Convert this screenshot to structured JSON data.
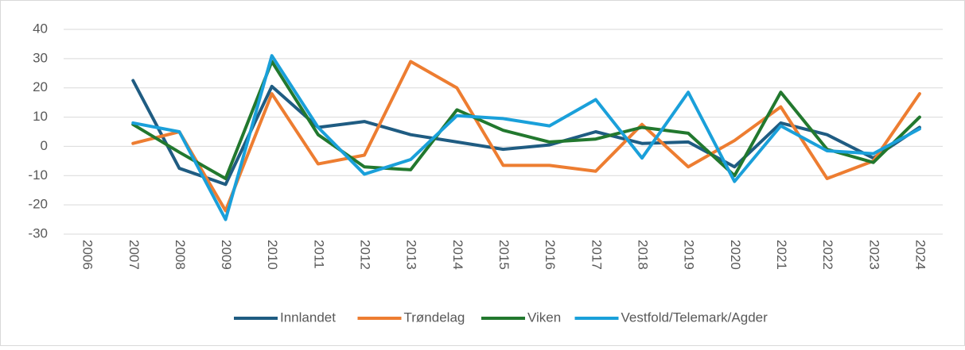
{
  "chart_data": {
    "type": "line",
    "categories": [
      "2006",
      "2007",
      "2008",
      "2009",
      "2010",
      "2011",
      "2012",
      "2013",
      "2014",
      "2015",
      "2016",
      "2017",
      "2018",
      "2019",
      "2020",
      "2021",
      "2022",
      "2023",
      "2024"
    ],
    "series": [
      {
        "name": "Innlandet",
        "color": "#1f5c82",
        "values": [
          null,
          22.5,
          -7.5,
          -13,
          20.5,
          6.5,
          8.5,
          4,
          1.5,
          -1,
          0.5,
          5,
          1,
          1.5,
          -7,
          8,
          4,
          -4,
          6.5
        ]
      },
      {
        "name": "Trøndelag",
        "color": "#ed7d31",
        "values": [
          null,
          1,
          5,
          -22,
          18,
          -6,
          -3,
          29,
          20,
          -6.5,
          -6.5,
          -8.5,
          7.5,
          -7,
          2,
          13.5,
          -11,
          -5,
          18
        ]
      },
      {
        "name": "Viken",
        "color": "#22782e",
        "values": [
          null,
          7.5,
          -2,
          -11,
          29,
          4,
          -7,
          -8,
          12.5,
          5.5,
          1.5,
          2.5,
          6.5,
          4.5,
          -10,
          18.5,
          -1,
          -5.5,
          10
        ]
      },
      {
        "name": "Vestfold/Telemark/Agder",
        "color": "#1aa0da",
        "values": [
          null,
          8,
          5,
          -25,
          31,
          6.5,
          -9.5,
          -4.5,
          10.5,
          9.5,
          7,
          16,
          -4,
          18.5,
          -12,
          7,
          -1.5,
          -2.5,
          6
        ]
      }
    ],
    "ylim": [
      -30,
      40
    ],
    "yticks": [
      -30,
      -20,
      -10,
      0,
      10,
      20,
      30,
      40
    ],
    "grid": true,
    "legend": "bottom"
  }
}
